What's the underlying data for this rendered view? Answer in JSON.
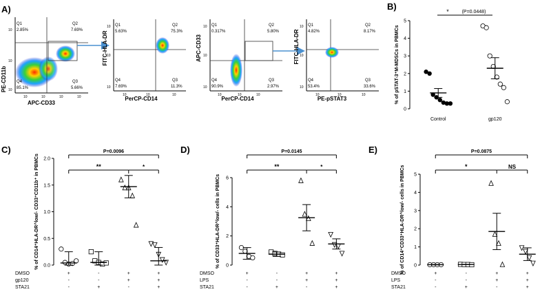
{
  "panels": {
    "A": {
      "label": "A)",
      "plots": [
        {
          "ylabel": "PE-CD11b",
          "xlabel": "APC-CD33",
          "quadrants": {
            "q1": "Q1",
            "q1v": "2.85%",
            "q2": "Q2",
            "q2v": "7.69%",
            "q3": "Q3",
            "q3v": "5.66%",
            "q4": "Q4",
            "q4v": "85.1%"
          },
          "ticks_x": [
            "10",
            "10",
            "10",
            "10",
            "10",
            "10",
            "10"
          ],
          "ticks_y": [
            "10",
            "10",
            "10",
            "10",
            "10"
          ]
        },
        {
          "ylabel": "FITC-HLA-DR",
          "xlabel": "PerCP-CD14",
          "quadrants": {
            "q1": "Q1",
            "q1v": "5.63%",
            "q2": "Q2",
            "q2v": "75.3%",
            "q3": "Q3",
            "q3v": "11.3%",
            "q4": "Q4",
            "q4v": "7.69%"
          },
          "ticks_x": [
            "10",
            "10",
            "10",
            "10",
            "10"
          ],
          "ticks_y": [
            "10",
            "10",
            "10",
            "10",
            "10"
          ]
        },
        {
          "ylabel": "APC-CD33",
          "xlabel": "PerCP-CD14",
          "quadrants": {
            "q1": "Q1",
            "q1v": "0.317%",
            "q2": "Q2",
            "q2v": "5.80%",
            "q3": "Q3",
            "q3v": "2.97%",
            "q4": "Q4",
            "q4v": "90.9%"
          },
          "ticks_x": [
            "10",
            "10",
            "10",
            "10",
            "10",
            "10"
          ],
          "ticks_y": [
            "10",
            "10",
            "10",
            "10",
            "10"
          ]
        },
        {
          "ylabel": "FITC-HLA-DR",
          "xlabel": "PE-pSTAT3",
          "quadrants": {
            "q1": "Q1",
            "q1v": "4.82%",
            "q2": "Q2",
            "q2v": "8.17%",
            "q3": "Q3",
            "q3v": "33.6%",
            "q4": "Q4",
            "q4v": "53.4%"
          },
          "ticks_x": [
            "10",
            "10",
            "10",
            "10",
            "10"
          ],
          "ticks_y": [
            "10",
            "10",
            "10",
            "10",
            "10"
          ]
        }
      ]
    }
  },
  "chart_data": [
    {
      "panel": "B",
      "label": "B)",
      "type": "scatter",
      "ylabel": "% of pSTAT-3⁺M-MDSCs in PBMCs",
      "ylim": [
        0,
        5
      ],
      "yticks": [
        "0",
        "1",
        "2",
        "3",
        "4",
        "5"
      ],
      "categories": [
        "Control",
        "gp120"
      ],
      "series": [
        {
          "name": "Control",
          "marker": "filled-circle",
          "values": [
            2.1,
            2.0,
            0.8,
            0.65,
            0.5,
            0.35,
            0.3,
            0.3
          ],
          "mean": 0.9,
          "sem": 0.25
        },
        {
          "name": "gp120",
          "marker": "open-circle",
          "values": [
            4.7,
            4.6,
            3.0,
            2.4,
            1.8,
            1.4,
            1.2,
            0.4
          ],
          "mean": 2.3,
          "sem": 0.6
        }
      ],
      "annotations": [
        {
          "text": "*",
          "between": [
            "Control",
            "gp120"
          ]
        },
        {
          "text": "(P=0.0448)"
        }
      ]
    },
    {
      "panel": "C",
      "label": "C)",
      "type": "scatter",
      "ylabel": "% of CD14⁺HLA-DR^low/- CD33⁺CD11b⁺ in PBMCs",
      "ylim": [
        0,
        2.0
      ],
      "yticks": [
        "0.0",
        "0.5",
        "1.0",
        "1.5",
        "2.0"
      ],
      "series": [
        {
          "name": "DMSO",
          "marker": "circle",
          "values": [
            0.3,
            0.05,
            0.02,
            0.03,
            0.08
          ],
          "mean": 0.04,
          "sem": 0.21
        },
        {
          "name": "STA21",
          "marker": "square",
          "values": [
            0.25,
            0.08,
            0.05,
            0.02,
            0.04
          ],
          "mean": 0.05,
          "sem": 0.2
        },
        {
          "name": "gp120",
          "marker": "triangle",
          "values": [
            1.6,
            1.45,
            1.45,
            1.3,
            0.75
          ],
          "mean": 1.47,
          "sem": 0.21
        },
        {
          "name": "gp120+STA21",
          "marker": "inv-triangle",
          "values": [
            0.4,
            0.38,
            0.2,
            0.1,
            0.05
          ],
          "mean": 0.08,
          "sem": 0.25
        }
      ],
      "conditions": [
        {
          "name": "DMSO",
          "marks": [
            "+",
            "-",
            "+",
            "+"
          ]
        },
        {
          "name": "gp120",
          "marks": [
            "-",
            "-",
            "+",
            "+"
          ]
        },
        {
          "name": "STA21",
          "marks": [
            "-",
            "+",
            "-",
            "+"
          ]
        }
      ],
      "annotations": [
        {
          "text": "P=0.0096"
        },
        {
          "text": "**"
        },
        {
          "text": "*"
        }
      ]
    },
    {
      "panel": "D",
      "label": "D)",
      "type": "scatter",
      "ylabel": "% of CD33⁺HLA-DR^low/- cells in PBMCs",
      "ylim": [
        0,
        6
      ],
      "yticks": [
        "0",
        "2",
        "4",
        "6"
      ],
      "series": [
        {
          "name": "DMSO",
          "marker": "circle",
          "values": [
            1.2,
            0.95,
            0.6,
            0.5
          ],
          "mean": 0.8,
          "sem": 0.4
        },
        {
          "name": "STA21",
          "marker": "square",
          "values": [
            0.9,
            0.8,
            0.75,
            0.7
          ],
          "mean": 0.75,
          "sem": 0.15
        },
        {
          "name": "LPS",
          "marker": "triangle",
          "values": [
            5.8,
            3.5,
            3.2,
            1.5
          ],
          "mean": 3.25,
          "sem": 0.9
        },
        {
          "name": "LPS+STA21",
          "marker": "inv-triangle",
          "values": [
            2.1,
            1.4,
            1.3,
            0.8
          ],
          "mean": 1.45,
          "sem": 0.35
        }
      ],
      "conditions": [
        {
          "name": "DMSO",
          "marks": [
            "+",
            "-",
            "+",
            "+"
          ]
        },
        {
          "name": "LPS",
          "marks": [
            "-",
            "-",
            "+",
            "+"
          ]
        },
        {
          "name": "STA21",
          "marks": [
            "-",
            "+",
            "-",
            "+"
          ]
        }
      ],
      "annotations": [
        {
          "text": "P=0.0145"
        },
        {
          "text": "**"
        },
        {
          "text": "*"
        }
      ]
    },
    {
      "panel": "E",
      "label": "E)",
      "type": "scatter",
      "ylabel": "% of CD14⁺CD33⁺HLA-DR^low/- cells in PBMCs",
      "ylim": [
        0,
        5
      ],
      "yticks": [
        "0",
        "1",
        "2",
        "3",
        "4",
        "5"
      ],
      "series": [
        {
          "name": "DMSO",
          "marker": "circle",
          "values": [
            0.02,
            0.02,
            0.02,
            0.02
          ],
          "mean": 0.02,
          "sem": 0.01
        },
        {
          "name": "STA21",
          "marker": "square",
          "values": [
            0.04,
            0.03,
            0.03,
            0.02
          ],
          "mean": 0.03,
          "sem": 0.01
        },
        {
          "name": "LPS",
          "marker": "triangle",
          "values": [
            4.5,
            1.7,
            1.2,
            0.03
          ],
          "mean": 1.85,
          "sem": 1.0
        },
        {
          "name": "LPS+STA21",
          "marker": "inv-triangle",
          "values": [
            0.95,
            0.75,
            0.4,
            0.1
          ],
          "mean": 0.6,
          "sem": 0.35
        }
      ],
      "conditions": [
        {
          "name": "DMSO",
          "marks": [
            "+",
            "-",
            "+",
            "+"
          ]
        },
        {
          "name": "LPS",
          "marks": [
            "-",
            "-",
            "+",
            "+"
          ]
        },
        {
          "name": "STA21",
          "marks": [
            "-",
            "+",
            "-",
            "+"
          ]
        }
      ],
      "annotations": [
        {
          "text": "P=0.0875"
        },
        {
          "text": "*"
        },
        {
          "text": "NS"
        }
      ]
    }
  ],
  "colors": {
    "arrow": "#4a90d0",
    "gate": "#333333",
    "dot_fill": "#000000",
    "error_bar": "#000000"
  }
}
